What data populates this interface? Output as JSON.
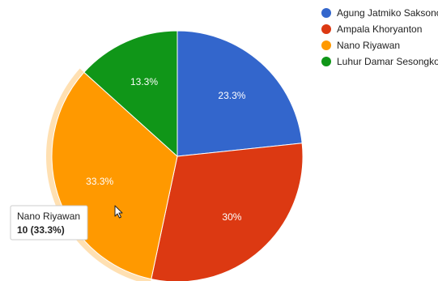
{
  "chart_data": {
    "type": "pie",
    "slices": [
      {
        "name": "Agung Jatmiko Saksono",
        "value": 7,
        "label": "23.3%",
        "color": "#3366cc"
      },
      {
        "name": "Ampala Khoryanton",
        "value": 9,
        "label": "30%",
        "color": "#dc3912"
      },
      {
        "name": "Nano Riyawan",
        "value": 10,
        "label": "33.3%",
        "color": "#ff9900"
      },
      {
        "name": "Luhur Damar Sesongko",
        "value": 4,
        "label": "13.3%",
        "color": "#109618"
      }
    ],
    "legend_position": "right",
    "highlighted_slice": "Nano Riyawan"
  },
  "tooltip": {
    "name": "Nano Riyawan",
    "value": "10 (33.3%)"
  },
  "cursor_icon": "mouse-pointer-icon"
}
